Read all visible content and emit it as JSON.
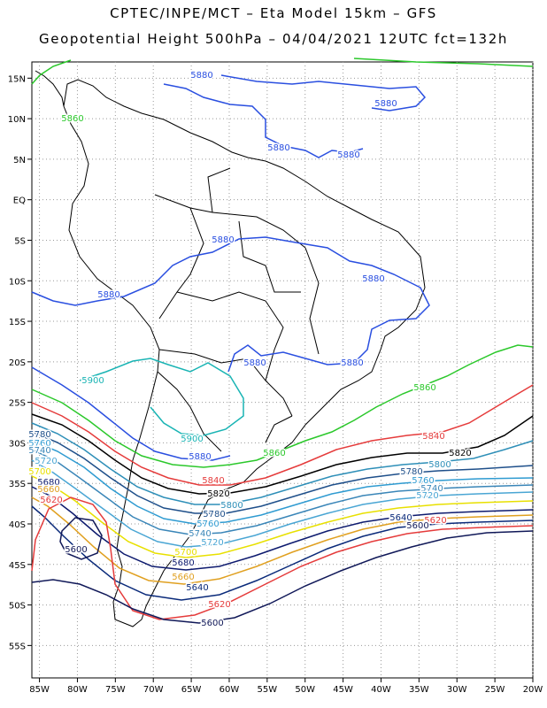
{
  "header": {
    "title_line1": "CPTEC/INPE/MCT –  Eta Model 15km – GFS",
    "title_line2": "Geopotential Height 500hPa – 04/04/2021 12UTC fct=132h"
  },
  "map": {
    "lon_range": [
      -86,
      -20
    ],
    "lat_range": [
      17,
      -59
    ],
    "lon_ticks": [
      "85W",
      "80W",
      "75W",
      "70W",
      "65W",
      "60W",
      "55W",
      "50W",
      "45W",
      "40W",
      "35W",
      "30W",
      "25W",
      "20W"
    ],
    "lon_values": [
      -85,
      -80,
      -75,
      -70,
      -65,
      -60,
      -55,
      -50,
      -45,
      -40,
      -35,
      -30,
      -25,
      -20
    ],
    "lat_ticks": [
      "15N",
      "10N",
      "5N",
      "EQ",
      "5S",
      "10S",
      "15S",
      "20S",
      "25S",
      "30S",
      "35S",
      "40S",
      "45S",
      "50S",
      "55S"
    ],
    "lat_values": [
      15,
      10,
      5,
      0,
      -5,
      -10,
      -15,
      -20,
      -25,
      -30,
      -35,
      -40,
      -45,
      -50,
      -55
    ]
  },
  "contours": {
    "c5900": {
      "label": "5900",
      "color": "#19b4b4"
    },
    "c5880": {
      "label": "5880",
      "color": "#2a4fe0"
    },
    "c5860": {
      "label": "5860",
      "color": "#2bc82b"
    },
    "c5840": {
      "label": "5840",
      "color": "#e53b3b"
    },
    "c5820": {
      "label": "5820",
      "color": "#000000"
    },
    "c5800": {
      "label": "5800",
      "color": "#2e8fb8"
    },
    "c5780": {
      "label": "5780",
      "color": "#1e4f8a"
    },
    "c5760": {
      "label": "5760",
      "color": "#2f9bd1"
    },
    "c5740": {
      "label": "5740",
      "color": "#3a86b8"
    },
    "c5720": {
      "label": "5720",
      "color": "#4aa6d4"
    },
    "c5700": {
      "label": "5700",
      "color": "#e8e000"
    },
    "c5680": {
      "label": "5680",
      "color": "#0d1a6e"
    },
    "c5660": {
      "label": "5660",
      "color": "#e0a020"
    },
    "c5640": {
      "label": "5640",
      "color": "#0a2a7a"
    },
    "c5620": {
      "label": "5620",
      "color": "#e53b3b"
    },
    "c5600": {
      "label": "5600",
      "color": "#101858"
    }
  }
}
